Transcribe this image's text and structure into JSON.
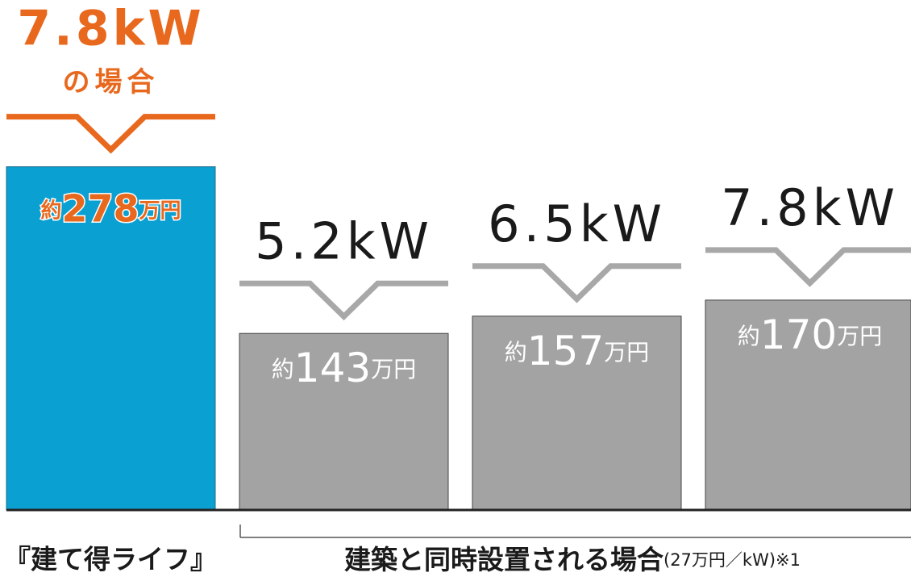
{
  "chart_data": {
    "type": "bar",
    "categories": [
      "7.8kW",
      "5.2kW",
      "6.5kW",
      "7.8kW"
    ],
    "category_note": "の場合",
    "values": [
      278,
      143,
      157,
      170
    ],
    "value_labels": [
      "約278万円",
      "約143万円",
      "約157万円",
      "約170万円"
    ],
    "colors": [
      "#0aa0d2",
      "#a3a3a3",
      "#a3a3a3",
      "#a3a3a3"
    ],
    "label_colors": [
      "#e8681e",
      "#ffffff",
      "#ffffff",
      "#ffffff"
    ],
    "category_colors": [
      "#e8681e",
      "#1a1a1a",
      "#1a1a1a",
      "#1a1a1a"
    ],
    "ylim": [
      0,
      300
    ],
    "groups": [
      {
        "label": "『建て得ライフ』"
      },
      {
        "label": "建築と同時設置される場合",
        "note": "(27万円／kW)※1"
      }
    ]
  }
}
